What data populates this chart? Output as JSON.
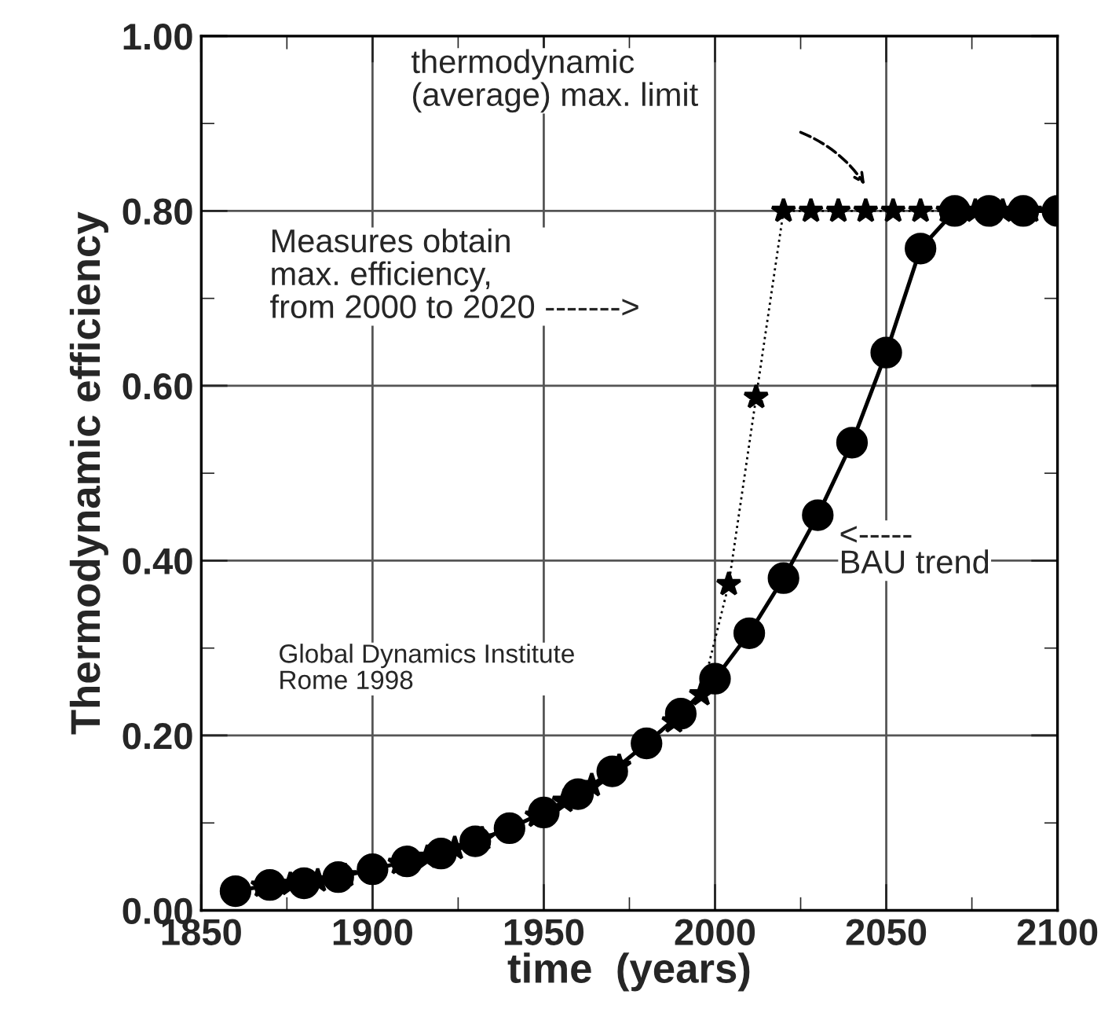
{
  "chart_data": {
    "type": "line",
    "xlabel": "time  (years)",
    "ylabel": "Thermodynamic efficiency",
    "xlim": [
      1850,
      2100
    ],
    "xticks": [
      1850,
      1900,
      1950,
      2000,
      2050,
      2100
    ],
    "ylim": [
      0,
      1
    ],
    "yticks": [
      {
        "value": 0,
        "label": "0.00"
      },
      {
        "value": 0.2,
        "label": "0.20"
      },
      {
        "value": 0.4,
        "label": "0.40"
      },
      {
        "value": 0.6,
        "label": "0.60"
      },
      {
        "value": 0.8,
        "label": "0.80"
      },
      {
        "value": 1,
        "label": "1.00"
      }
    ],
    "grid": true,
    "legend": false,
    "series": [
      {
        "color": "#000000",
        "marker": "circle",
        "line_style": "solid",
        "x": [
          1860,
          1870,
          1880,
          1890,
          1900,
          1910,
          1920,
          1930,
          1940,
          1950,
          1960,
          1970,
          1980,
          1990,
          2000,
          2010,
          2020,
          2030,
          2040,
          2050,
          2060,
          2070,
          2080,
          2090,
          2100
        ],
        "values": [
          0.022,
          0.029,
          0.031,
          0.038,
          0.047,
          0.056,
          0.065,
          0.079,
          0.094,
          0.112,
          0.133,
          0.159,
          0.191,
          0.225,
          0.265,
          0.317,
          0.38,
          0.452,
          0.535,
          0.638,
          0.757,
          0.8,
          0.8,
          0.8,
          0.8
        ]
      },
      {
        "color": "#000000",
        "marker": "star",
        "line_style": "dotted",
        "x": [
          1860,
          1868,
          1876,
          1884,
          1892,
          1900,
          1908,
          1916,
          1924,
          1932,
          1940,
          1948,
          1956,
          1964,
          1972,
          1980,
          1988,
          1996,
          2004,
          2012,
          2020,
          2028,
          2036,
          2044,
          2052,
          2060,
          2068,
          2076,
          2084,
          2092,
          2100
        ],
        "values": [
          0.022,
          0.028,
          0.03,
          0.034,
          0.04,
          0.047,
          0.054,
          0.061,
          0.071,
          0.082,
          0.094,
          0.108,
          0.125,
          0.143,
          0.165,
          0.191,
          0.216,
          0.247,
          0.373,
          0.587,
          0.8,
          0.8,
          0.8,
          0.8,
          0.8,
          0.8,
          0.8,
          0.8,
          0.8,
          0.8,
          0.8
        ]
      }
    ],
    "annotations": [
      "thermodynamic\n(average) max. limit",
      "Measures obtain\nmax. efficiency,\nfrom 2000 to 2020 ------->",
      "<-----\nBAU trend",
      "Global Dynamics Institute\nRome 1998"
    ]
  }
}
